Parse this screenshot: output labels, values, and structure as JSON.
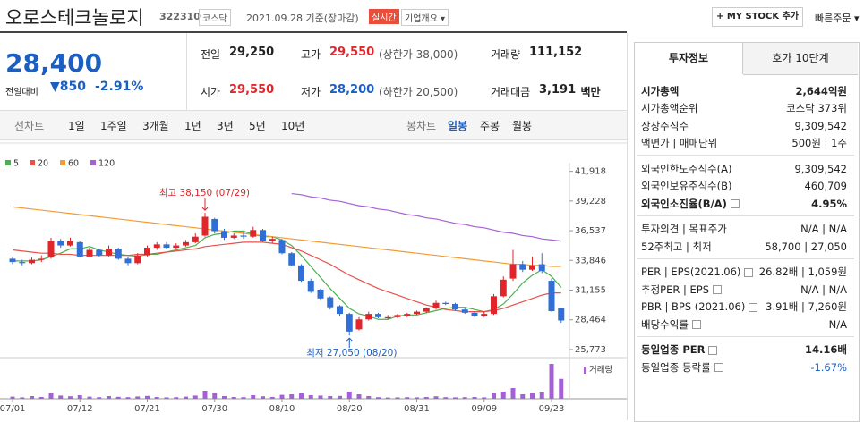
{
  "header": {
    "name": "오로스테크놀로지",
    "code": "322310",
    "market": "코스닥",
    "date": "2021.09.28 기준(장마감)",
    "realtime": "실시간",
    "company": "기업개요",
    "my_stock": "+ MY STOCK 추가",
    "quick_order": "빠른주문"
  },
  "price": {
    "current": "28,400",
    "change_label": "전일대비",
    "change": "850",
    "change_pct": "-2.91%",
    "color": "#1c5fc2"
  },
  "quotes": [
    [
      {
        "label": "전일",
        "value": "29,250",
        "color": "#222222"
      },
      {
        "label": "고가",
        "value": "29,550",
        "note": "(상한가 38,000)",
        "color": "#e0262b"
      },
      {
        "label": "거래량",
        "value": "111,152",
        "color": "#222222"
      }
    ],
    [
      {
        "label": "시가",
        "value": "29,550",
        "color": "#e0262b"
      },
      {
        "label": "저가",
        "value": "28,200",
        "note": "(하한가 20,500)",
        "color": "#1c5fc2"
      },
      {
        "label": "거래대금",
        "value": "3,191",
        "unit": "백만",
        "color": "#222222"
      }
    ]
  ],
  "chart_tabs": {
    "line_label": "선차트",
    "line": [
      "1일",
      "1주일",
      "3개월",
      "1년",
      "3년",
      "5년",
      "10년"
    ],
    "candle_label": "봉차트",
    "candle": [
      "일봉",
      "주봉",
      "월봉"
    ],
    "active": "일봉"
  },
  "chart_data": {
    "type": "candlestick",
    "categories": [
      "07/01",
      null,
      null,
      null,
      null,
      null,
      null,
      "07/12",
      null,
      null,
      null,
      null,
      null,
      null,
      "07/21",
      null,
      null,
      null,
      null,
      null,
      null,
      "07/30",
      null,
      null,
      null,
      null,
      null,
      null,
      "08/10",
      null,
      null,
      null,
      null,
      null,
      null,
      "08/20",
      null,
      null,
      null,
      null,
      null,
      null,
      "08/31",
      null,
      null,
      null,
      null,
      null,
      null,
      "09/09",
      null,
      null,
      null,
      null,
      null,
      null,
      "09/23",
      null
    ],
    "open": [
      34000,
      33700,
      33600,
      33900,
      34100,
      35600,
      35200,
      35500,
      34200,
      34800,
      34300,
      34900,
      34000,
      33600,
      34300,
      35000,
      35300,
      35000,
      35200,
      35500,
      36100,
      37600,
      36500,
      35900,
      36100,
      36000,
      36600,
      35600,
      35700,
      34500,
      33400,
      32000,
      31200,
      30500,
      29700,
      29000,
      27600,
      28500,
      29000,
      28600,
      28700,
      28800,
      29000,
      29200,
      29500,
      30000,
      29900,
      29400,
      29100,
      28800,
      29000,
      30600,
      32200,
      33500,
      33000,
      33500,
      32000,
      29550
    ],
    "high": [
      34200,
      33900,
      34100,
      34300,
      35900,
      35800,
      35900,
      35600,
      35000,
      34900,
      35200,
      35000,
      34200,
      34500,
      35200,
      35500,
      35500,
      35400,
      35700,
      36300,
      38150,
      37700,
      36700,
      36300,
      36400,
      36900,
      36700,
      36000,
      35800,
      34600,
      33500,
      32200,
      31300,
      30600,
      29800,
      29100,
      28700,
      29200,
      29100,
      28900,
      29000,
      29100,
      29300,
      29600,
      30200,
      30100,
      30000,
      29500,
      29200,
      29200,
      30800,
      32400,
      34800,
      33800,
      34200,
      34500,
      32200,
      29550
    ],
    "low": [
      33500,
      33400,
      33500,
      33700,
      34000,
      35000,
      35100,
      34100,
      34100,
      34200,
      34200,
      33900,
      33400,
      33500,
      34200,
      34800,
      34900,
      34900,
      35100,
      35400,
      36000,
      36300,
      35700,
      35800,
      35800,
      35900,
      35500,
      35400,
      34400,
      33300,
      31900,
      30900,
      30200,
      29400,
      28800,
      27050,
      27500,
      28400,
      28600,
      28500,
      28600,
      28700,
      28900,
      29100,
      29400,
      29800,
      29300,
      29000,
      28700,
      28700,
      28900,
      30500,
      32000,
      32800,
      32900,
      32700,
      29200,
      28200
    ],
    "close": [
      33700,
      33600,
      33900,
      34000,
      35600,
      35200,
      35600,
      34200,
      34800,
      34300,
      34900,
      34000,
      33600,
      34300,
      35000,
      35300,
      35000,
      35200,
      35500,
      36000,
      37800,
      36500,
      35900,
      36100,
      36000,
      36600,
      35600,
      35800,
      34500,
      33400,
      32000,
      31000,
      30400,
      29600,
      29000,
      27400,
      28500,
      29000,
      28700,
      28700,
      28900,
      29000,
      29200,
      29500,
      30000,
      29900,
      29400,
      29100,
      28800,
      29000,
      30600,
      32100,
      33500,
      33000,
      33400,
      32900,
      29250,
      28400
    ],
    "up_color": "#e0262b",
    "down_color": "#2f6fd6",
    "series": [
      {
        "name": "5",
        "color": "#4caf50",
        "values": [
          33800,
          33800,
          33800,
          33900,
          34200,
          34500,
          34900,
          34900,
          35100,
          34800,
          34600,
          34400,
          34300,
          34200,
          34400,
          34400,
          34600,
          34800,
          35000,
          35200,
          35900,
          36200,
          36300,
          36500,
          36500,
          36200,
          36000,
          36000,
          35700,
          35200,
          34300,
          33300,
          32300,
          31300,
          30400,
          29500,
          29000,
          28800,
          28500,
          28500,
          28800,
          28900,
          28900,
          29100,
          29300,
          29500,
          29600,
          29600,
          29400,
          29200,
          29400,
          29900,
          30800,
          31800,
          32500,
          33000,
          32400,
          31400
        ]
      },
      {
        "name": "20",
        "color": "#e8514a",
        "values": [
          34800,
          34700,
          34600,
          34500,
          34500,
          34400,
          34400,
          34300,
          34300,
          34300,
          34300,
          34300,
          34300,
          34400,
          34400,
          34500,
          34600,
          34700,
          34800,
          34900,
          35100,
          35200,
          35300,
          35400,
          35500,
          35500,
          35500,
          35400,
          35300,
          35000,
          34700,
          34300,
          33900,
          33500,
          33000,
          32500,
          32100,
          31700,
          31300,
          31000,
          30700,
          30400,
          30100,
          29800,
          29600,
          29400,
          29300,
          29200,
          29200,
          29200,
          29300,
          29500,
          29800,
          30100,
          30400,
          30700,
          30900,
          30900
        ]
      },
      {
        "name": "60",
        "color": "#f39c34",
        "values": [
          38700,
          38600,
          38500,
          38400,
          38300,
          38200,
          38100,
          38000,
          37900,
          37800,
          37700,
          37600,
          37500,
          37400,
          37300,
          37200,
          37100,
          37000,
          36900,
          36800,
          36700,
          36600,
          36500,
          36400,
          36300,
          36200,
          36100,
          36000,
          35900,
          35800,
          35700,
          35600,
          35500,
          35400,
          35300,
          35200,
          35100,
          35000,
          34900,
          34800,
          34700,
          34600,
          34500,
          34400,
          34300,
          34200,
          34100,
          34000,
          33900,
          33800,
          33700,
          33600,
          33500,
          33500,
          33400,
          33400,
          33300,
          33300
        ]
      },
      {
        "name": "120",
        "color": "#a660d6",
        "values": [
          null,
          null,
          null,
          null,
          null,
          null,
          null,
          null,
          null,
          null,
          null,
          null,
          null,
          null,
          null,
          null,
          null,
          null,
          null,
          null,
          null,
          null,
          null,
          null,
          null,
          null,
          null,
          null,
          null,
          39900,
          39800,
          39600,
          39500,
          39300,
          39200,
          39000,
          38800,
          38700,
          38500,
          38400,
          38200,
          38000,
          37900,
          37700,
          37600,
          37400,
          37200,
          37100,
          36900,
          36800,
          36600,
          36400,
          36300,
          36100,
          36000,
          35800,
          35700,
          35600
        ]
      }
    ],
    "ylim": [
      25200,
      42700
    ],
    "yticks": [
      {
        "value": 41918,
        "label": "41,918"
      },
      {
        "value": 39228,
        "label": "39,228"
      },
      {
        "value": 36537,
        "label": "36,537"
      },
      {
        "value": 33846,
        "label": "33,846"
      },
      {
        "value": 31155,
        "label": "31,155"
      },
      {
        "value": 28464,
        "label": "28,464"
      },
      {
        "value": 25773,
        "label": "25,773"
      }
    ],
    "annotations": {
      "high": "최고 38,150 (07/29)",
      "low": "최저 27,050 (08/20)"
    },
    "volume": {
      "name": "거래량",
      "color": "#a660d6",
      "ylim": [
        0,
        200000
      ],
      "values": [
        12000,
        8000,
        15000,
        10000,
        30000,
        18000,
        14000,
        20000,
        12000,
        9000,
        15000,
        11000,
        9000,
        13000,
        16000,
        10000,
        8000,
        9000,
        12000,
        18000,
        45000,
        30000,
        15000,
        10000,
        9000,
        20000,
        14000,
        10000,
        22000,
        25000,
        30000,
        20000,
        18000,
        15000,
        16000,
        40000,
        25000,
        15000,
        9000,
        7000,
        8000,
        9000,
        8000,
        10000,
        14000,
        9000,
        8000,
        9000,
        10000,
        8000,
        30000,
        40000,
        60000,
        25000,
        30000,
        35000,
        195000,
        111152
      ]
    }
  },
  "side": {
    "tabs": [
      "투자정보",
      "호가 10단계"
    ],
    "groups": [
      [
        {
          "label": "시가총액",
          "value": "2,644억원",
          "bold": true
        },
        {
          "label": "시가총액순위",
          "value": "코스닥 373위"
        },
        {
          "label": "상장주식수",
          "value": "9,309,542"
        },
        {
          "label": "액면가 | 매매단위",
          "value": "500원 | 1주"
        }
      ],
      [
        {
          "label": "외국인한도주식수(A)",
          "value": "9,309,542"
        },
        {
          "label": "외국인보유주식수(B)",
          "value": "460,709"
        },
        {
          "label": "외국인소진율(B/A)",
          "value": "4.95%",
          "bold": true,
          "help": true
        }
      ],
      [
        {
          "label": "투자의견 | 목표주가",
          "value": "N/A | N/A"
        },
        {
          "label": "52주최고 | 최저",
          "value": "58,700 | 27,050"
        }
      ],
      [
        {
          "label": "PER | EPS(2021.06)",
          "value": "26.82배 | 1,059원",
          "help": true
        },
        {
          "label": "추정PER | EPS",
          "value": "N/A | N/A",
          "help": true
        },
        {
          "label": "PBR | BPS (2021.06)",
          "value": "3.91배 | 7,260원",
          "help": true
        },
        {
          "label": "배당수익률",
          "value": "N/A",
          "help": true
        }
      ],
      [
        {
          "label": "동일업종 PER",
          "value": "14.16배",
          "bold": true,
          "help": true
        },
        {
          "label": "동일업종 등락률",
          "value": "-1.67%",
          "help": true,
          "color": "#1c5fc2"
        }
      ]
    ]
  }
}
